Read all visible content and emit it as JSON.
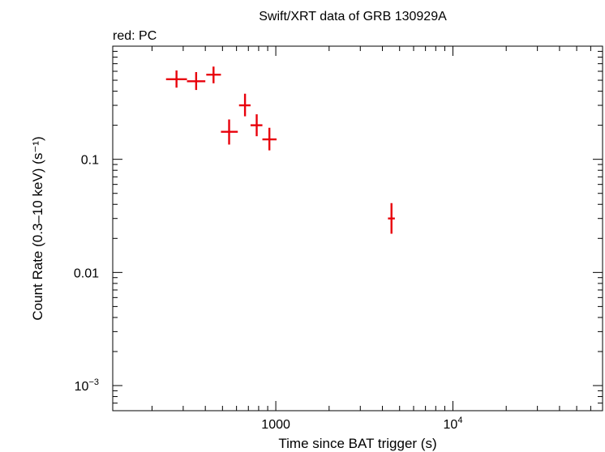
{
  "chart_data": {
    "type": "scatter",
    "title": "Swift/XRT data of GRB 130929A",
    "subtitle": "red: PC",
    "xlabel": "Time since BAT trigger (s)",
    "ylabel": "Count Rate (0.3–10 keV) (s⁻¹)",
    "x_scale": "log",
    "y_scale": "log",
    "xlim": [
      120,
      70000
    ],
    "ylim": [
      0.0006,
      1.0
    ],
    "grid": false,
    "x_tick_labels": [
      {
        "value": 1000,
        "base": "1000",
        "exp": ""
      },
      {
        "value": 10000,
        "base": "10",
        "exp": "4"
      }
    ],
    "y_tick_labels": [
      {
        "value": 0.1,
        "base": "0.1",
        "exp": ""
      },
      {
        "value": 0.01,
        "base": "0.01",
        "exp": ""
      },
      {
        "value": 0.001,
        "base": "10",
        "exp": "−3"
      }
    ],
    "series": [
      {
        "color": "#e8000b",
        "points": [
          {
            "x": 275,
            "xlo": 240,
            "xhi": 315,
            "y": 0.51,
            "ylo": 0.43,
            "yhi": 0.61
          },
          {
            "x": 355,
            "xlo": 315,
            "xhi": 400,
            "y": 0.49,
            "ylo": 0.41,
            "yhi": 0.59
          },
          {
            "x": 445,
            "xlo": 405,
            "xhi": 490,
            "y": 0.56,
            "ylo": 0.47,
            "yhi": 0.66
          },
          {
            "x": 545,
            "xlo": 490,
            "xhi": 610,
            "y": 0.175,
            "ylo": 0.135,
            "yhi": 0.225
          },
          {
            "x": 670,
            "xlo": 620,
            "xhi": 720,
            "y": 0.3,
            "ylo": 0.24,
            "yhi": 0.38
          },
          {
            "x": 780,
            "xlo": 720,
            "xhi": 840,
            "y": 0.2,
            "ylo": 0.16,
            "yhi": 0.25
          },
          {
            "x": 920,
            "xlo": 840,
            "xhi": 1010,
            "y": 0.15,
            "ylo": 0.12,
            "yhi": 0.19
          },
          {
            "x": 4500,
            "xlo": 4300,
            "xhi": 4700,
            "y": 0.03,
            "ylo": 0.022,
            "yhi": 0.041
          }
        ]
      }
    ]
  }
}
